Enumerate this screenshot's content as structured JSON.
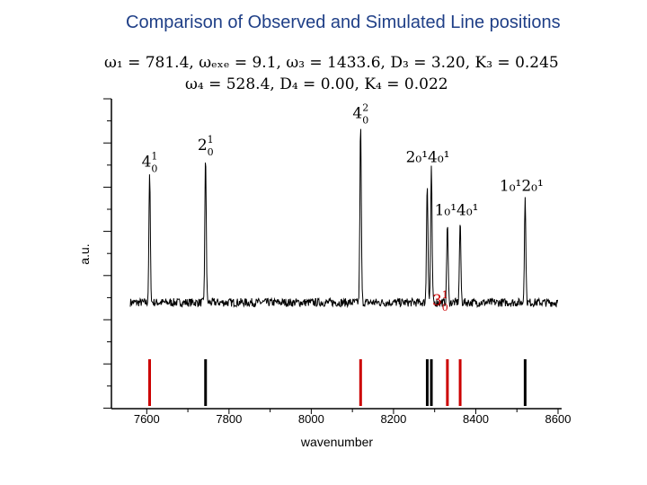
{
  "slide": {
    "title": "Comparison of Observed and Simulated Line positions",
    "param_line_1": "ω₁ = 781.4, ωₑₓₑ = 9.1, ω₃ = 1433.6, D₃ = 3.20, K₃ = 0.245",
    "param_line_2": "ω₄ = 528.4, D₄ = 0.00, K₄ = 0.022"
  },
  "chart_data": {
    "type": "line",
    "title": "",
    "xlabel": "wavenumber",
    "ylabel": "a.u.",
    "xlim": [
      7560,
      8600
    ],
    "ylim": [
      0,
      1
    ],
    "x_ticks": [
      7600,
      7800,
      8000,
      8200,
      8400,
      8600
    ],
    "grid": false,
    "series": [
      {
        "name": "",
        "color": "#000000",
        "baseline": 0.16,
        "peaks": [
          {
            "x": 7607,
            "height": 0.53,
            "label_base": "4",
            "label_sup": "1",
            "label_sub": "0",
            "label_text": "4₀¹",
            "label_color": "#000000"
          },
          {
            "x": 7743,
            "height": 0.6,
            "label_base": "2",
            "label_sup": "1",
            "label_sub": "0",
            "label_text": "2₀¹",
            "label_color": "#000000"
          },
          {
            "x": 8120,
            "height": 0.73,
            "label_base": "4",
            "label_sup": "2",
            "label_sub": "0",
            "label_text": "4₀²",
            "label_color": "#000000"
          },
          {
            "x": 8282,
            "height": 0.5,
            "label_base": "",
            "label_sup": "",
            "label_sub": "",
            "label_text": "",
            "label_color": "#000000"
          },
          {
            "x": 8292,
            "height": 0.55,
            "label_base": "2₀¹4₀¹",
            "label_sup": "",
            "label_sub": "",
            "label_text": "2₀¹4₀¹",
            "label_color": "#000000"
          },
          {
            "x": 8331,
            "height": 0.33,
            "label_base": "3",
            "label_sup": "1",
            "label_sub": "0",
            "label_text": "3₀¹",
            "label_color": "#cc0000"
          },
          {
            "x": 8362,
            "height": 0.33,
            "label_base": "1₀¹4₀¹",
            "label_sup": "",
            "label_sub": "",
            "label_text": "1₀¹4₀¹",
            "label_color": "#000000"
          },
          {
            "x": 8520,
            "height": 0.43,
            "label_base": "1₀¹2₀¹",
            "label_sup": "",
            "label_sub": "",
            "label_text": "1₀¹2₀¹",
            "label_color": "#000000"
          }
        ]
      }
    ],
    "simulated_lines": [
      {
        "x": 7607,
        "color": "#cc0000"
      },
      {
        "x": 7743,
        "color": "#000000"
      },
      {
        "x": 8120,
        "color": "#cc0000"
      },
      {
        "x": 8282,
        "color": "#000000"
      },
      {
        "x": 8292,
        "color": "#000000"
      },
      {
        "x": 8331,
        "color": "#cc0000"
      },
      {
        "x": 8362,
        "color": "#cc0000"
      },
      {
        "x": 8520,
        "color": "#000000"
      }
    ]
  }
}
